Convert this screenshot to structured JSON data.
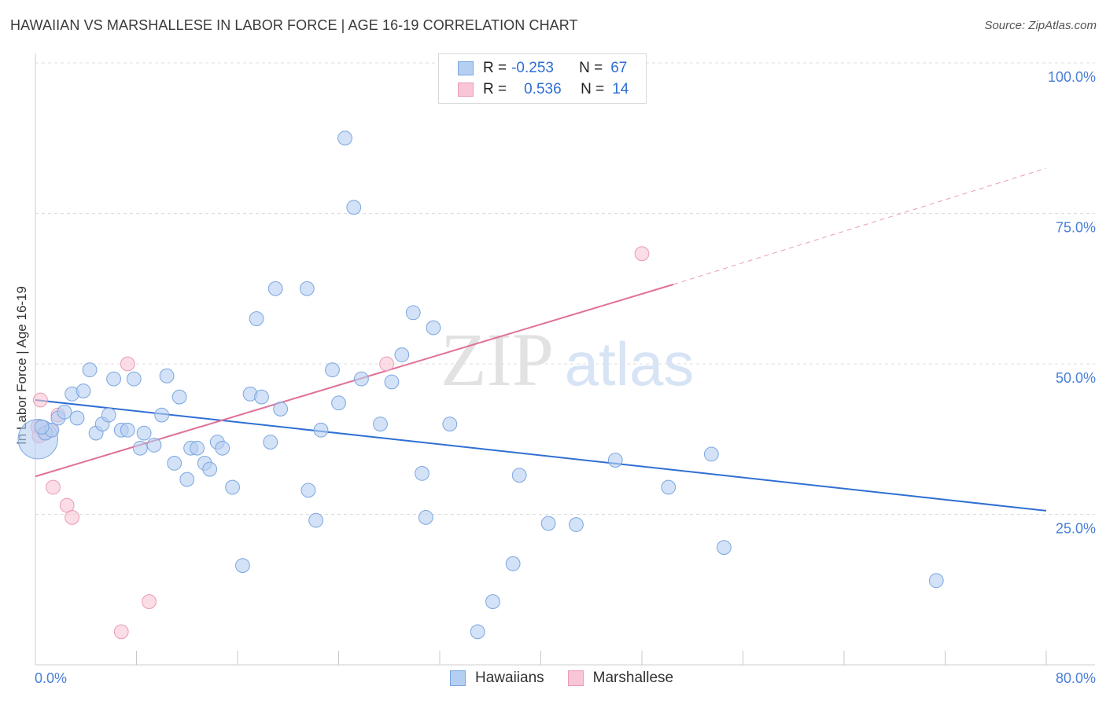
{
  "title": "HAWAIIAN VS MARSHALLESE IN LABOR FORCE | AGE 16-19 CORRELATION CHART",
  "source": "Source: ZipAtlas.com",
  "watermark": {
    "zip": "ZIP",
    "atlas": "atlas"
  },
  "legend": {
    "rows": [
      {
        "r_label": "R =",
        "r_value": "-0.253",
        "n_label": "N =",
        "n_value": "67"
      },
      {
        "r_label": "R =",
        "r_value": "0.536",
        "n_label": "N =",
        "n_value": "14"
      }
    ]
  },
  "bottom_legend": {
    "hawaiians": "Hawaiians",
    "marshallese": "Marshallese"
  },
  "colors": {
    "blue": "#2f6fd3",
    "blue_fill": "#b5cff2",
    "blue_stroke": "#7ba6e0",
    "pink": "#e07098",
    "pink_fill": "#f8c6d6",
    "pink_stroke": "#eb9ab5",
    "axis_text": "#4a7fd6",
    "grid": "#dcdcdc"
  },
  "chart_data": {
    "type": "scatter",
    "title": "HAWAIIAN VS MARSHALLESE IN LABOR FORCE | AGE 16-19 CORRELATION CHART",
    "xlabel": "",
    "ylabel": "In Labor Force | Age 16-19",
    "xlim": [
      0,
      80
    ],
    "ylim": [
      0,
      100
    ],
    "x_tick_labels": [
      "0.0%",
      "80.0%"
    ],
    "y_tick_labels": [
      "100.0%",
      "75.0%",
      "50.0%",
      "25.0%"
    ],
    "y_ticks": [
      100,
      75,
      50,
      25
    ],
    "grid": true,
    "series": [
      {
        "name": "Hawaiians",
        "color": "#2f6fd3",
        "trend": {
          "x": [
            0,
            80
          ],
          "y": [
            44.0,
            25.6
          ]
        },
        "points": [
          [
            0.2,
            37.5
          ],
          [
            0.8,
            38.5
          ],
          [
            1.3,
            39.0
          ],
          [
            1.8,
            41.0
          ],
          [
            2.3,
            42.0
          ],
          [
            2.9,
            45.0
          ],
          [
            3.3,
            41.0
          ],
          [
            3.8,
            45.5
          ],
          [
            4.3,
            49.0
          ],
          [
            4.8,
            38.5
          ],
          [
            5.3,
            40.0
          ],
          [
            5.8,
            41.5
          ],
          [
            6.2,
            47.5
          ],
          [
            6.8,
            39.0
          ],
          [
            7.3,
            39.0
          ],
          [
            7.8,
            47.5
          ],
          [
            8.3,
            36.0
          ],
          [
            8.6,
            38.5
          ],
          [
            9.4,
            36.5
          ],
          [
            10.0,
            41.5
          ],
          [
            10.4,
            48.0
          ],
          [
            11.0,
            33.5
          ],
          [
            11.4,
            44.5
          ],
          [
            12.0,
            30.8
          ],
          [
            12.3,
            36.0
          ],
          [
            12.8,
            36.0
          ],
          [
            13.4,
            33.5
          ],
          [
            13.8,
            32.5
          ],
          [
            14.4,
            37.0
          ],
          [
            14.8,
            36.0
          ],
          [
            15.6,
            29.5
          ],
          [
            16.4,
            16.5
          ],
          [
            17.0,
            45.0
          ],
          [
            17.5,
            57.5
          ],
          [
            17.9,
            44.5
          ],
          [
            18.6,
            37.0
          ],
          [
            19.0,
            62.5
          ],
          [
            19.4,
            42.5
          ],
          [
            21.5,
            62.5
          ],
          [
            21.6,
            29.0
          ],
          [
            22.2,
            24.0
          ],
          [
            22.6,
            39.0
          ],
          [
            23.5,
            49.0
          ],
          [
            24.0,
            43.5
          ],
          [
            24.5,
            87.5
          ],
          [
            25.2,
            76.0
          ],
          [
            25.8,
            47.5
          ],
          [
            27.3,
            40.0
          ],
          [
            28.2,
            47.0
          ],
          [
            29.0,
            51.5
          ],
          [
            29.9,
            58.5
          ],
          [
            30.6,
            31.8
          ],
          [
            30.9,
            24.5
          ],
          [
            31.5,
            56.0
          ],
          [
            32.8,
            40.0
          ],
          [
            35.0,
            5.5
          ],
          [
            36.2,
            10.5
          ],
          [
            37.8,
            16.8
          ],
          [
            38.3,
            31.5
          ],
          [
            40.6,
            23.5
          ],
          [
            42.8,
            23.3
          ],
          [
            45.9,
            34.0
          ],
          [
            50.1,
            29.5
          ],
          [
            53.5,
            35.0
          ],
          [
            54.5,
            19.5
          ],
          [
            71.3,
            14.0
          ],
          [
            0.5,
            39.5
          ]
        ],
        "point_sizes": [
          34,
          12,
          12,
          12,
          12,
          12,
          12,
          12,
          12,
          12,
          12,
          12,
          12,
          12,
          12,
          12,
          12,
          12,
          12,
          12,
          12,
          12,
          12,
          12,
          12,
          12,
          12,
          12,
          12,
          12,
          12,
          12,
          12,
          12,
          12,
          12,
          12,
          12,
          12,
          12,
          12,
          12,
          12,
          12,
          12,
          12,
          12,
          12,
          12,
          12,
          12,
          12,
          12,
          12,
          12,
          12,
          12,
          12,
          12,
          12,
          12,
          12,
          12,
          12,
          12,
          12,
          12
        ]
      },
      {
        "name": "Marshallese",
        "color": "#e07098",
        "trend": {
          "x": [
            0,
            50.5
          ],
          "y": [
            31.3,
            63.2
          ]
        },
        "trend_dashed": {
          "x": [
            50.5,
            80
          ],
          "y": [
            63.2,
            82.5
          ]
        },
        "points": [
          [
            0.2,
            39.5
          ],
          [
            0.4,
            44.0
          ],
          [
            0.7,
            38.5
          ],
          [
            1.2,
            39.0
          ],
          [
            1.8,
            41.5
          ],
          [
            1.4,
            29.5
          ],
          [
            2.5,
            26.5
          ],
          [
            2.9,
            24.5
          ],
          [
            6.8,
            5.5
          ],
          [
            7.3,
            50.0
          ],
          [
            9.0,
            10.5
          ],
          [
            27.8,
            50.0
          ],
          [
            48.0,
            68.3
          ],
          [
            0.3,
            38.0
          ]
        ],
        "point_sizes": [
          12,
          12,
          12,
          12,
          12,
          12,
          12,
          12,
          12,
          12,
          12,
          12,
          12,
          12
        ]
      }
    ]
  }
}
